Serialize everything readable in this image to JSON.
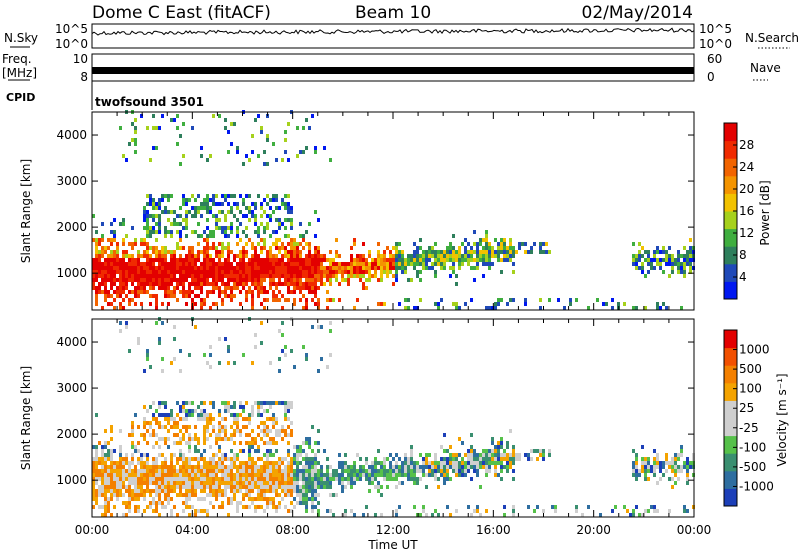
{
  "header": {
    "station": "Dome C East (fitACF)",
    "beam": "Beam 10",
    "date": "02/May/2014"
  },
  "chart_data": [
    {
      "panel": "noise",
      "type": "line",
      "left_label": "N.Sky",
      "right_label": "N.Search",
      "y_ticks_left": [
        "10^5",
        "10^0"
      ],
      "y_ticks_right": [
        "10^5",
        "10^0"
      ],
      "xlim_hours": [
        0,
        24
      ]
    },
    {
      "panel": "frequency",
      "type": "line",
      "left_label_1": "Freq.",
      "left_label_2": "[MHz]",
      "right_label": "Nave",
      "y_ticks_left": [
        "10",
        "8"
      ],
      "y_ticks_right": [
        "60",
        "0"
      ],
      "xlim_hours": [
        0,
        24
      ]
    },
    {
      "panel": "cpid",
      "type": "table",
      "label": "CPID",
      "value": "twofsound 3501"
    },
    {
      "panel": "power",
      "type": "heatmap",
      "ylabel": "Slant Range [km]",
      "ylim": [
        200,
        4500
      ],
      "y_ticks": [
        1000,
        2000,
        3000,
        4000
      ],
      "xlim_hours": [
        0,
        24
      ],
      "colorbar": {
        "label": "Power [dB]",
        "ticks": [
          "4",
          "8",
          "12",
          "16",
          "20",
          "24",
          "28"
        ],
        "colors": [
          "#0018f0",
          "#1f49b8",
          "#2e7f5c",
          "#3fae3f",
          "#a6d11c",
          "#f2c200",
          "#f49400",
          "#f26400",
          "#f02a00",
          "#e30000"
        ]
      }
    },
    {
      "panel": "velocity",
      "type": "heatmap",
      "ylabel": "Slant Range [km]",
      "ylim": [
        200,
        4500
      ],
      "y_ticks": [
        1000,
        2000,
        3000,
        4000
      ],
      "xlim_hours": [
        0,
        24
      ],
      "xlabel": "Time UT",
      "x_ticks": [
        "00:00",
        "04:00",
        "08:00",
        "12:00",
        "16:00",
        "20:00",
        "00:00"
      ],
      "colorbar": {
        "label": "Velocity [m s⁻¹]",
        "ticks": [
          "1000",
          "500",
          "100",
          "25",
          "-25",
          "-100",
          "-500",
          "-1000"
        ],
        "colors": [
          "#1c3fb8",
          "#2e6ea0",
          "#3a8f70",
          "#56c14a",
          "#cfcfcf",
          "#cfcfcf",
          "#f4a300",
          "#f48000",
          "#f25000",
          "#e30000"
        ]
      }
    }
  ]
}
